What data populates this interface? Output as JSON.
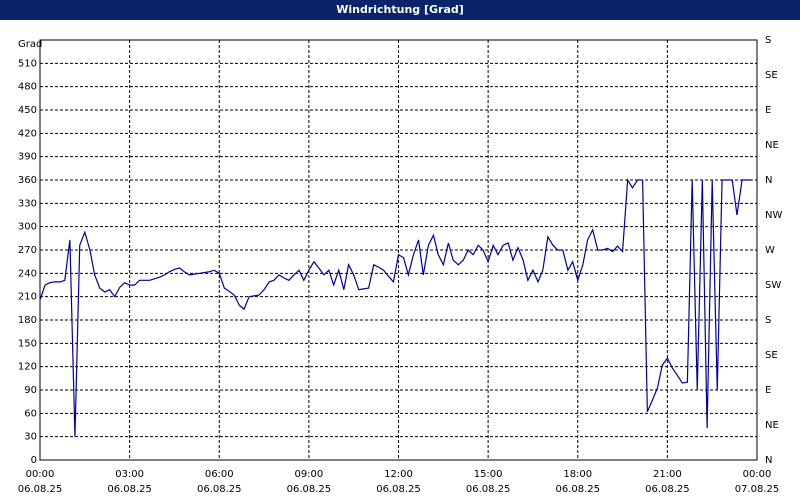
{
  "chart_data": {
    "type": "line",
    "title": "Windrichtung [Grad]",
    "y_label": "Grad",
    "x": [
      0,
      0.17,
      0.33,
      0.5,
      0.67,
      0.83,
      1,
      1.17,
      1.33,
      1.5,
      1.67,
      1.83,
      2,
      2.17,
      2.33,
      2.5,
      2.67,
      2.83,
      3,
      3.17,
      3.33,
      3.5,
      3.67,
      3.83,
      4,
      4.17,
      4.33,
      4.5,
      4.67,
      4.83,
      5,
      5.17,
      5.33,
      5.5,
      5.67,
      5.83,
      6,
      6.17,
      6.33,
      6.5,
      6.67,
      6.83,
      7,
      7.17,
      7.33,
      7.5,
      7.67,
      7.83,
      8,
      8.17,
      8.33,
      8.5,
      8.67,
      8.83,
      9,
      9.17,
      9.33,
      9.5,
      9.67,
      9.83,
      10,
      10.17,
      10.33,
      10.5,
      10.67,
      10.83,
      11,
      11.17,
      11.33,
      11.5,
      11.67,
      11.83,
      12,
      12.17,
      12.33,
      12.5,
      12.67,
      12.83,
      13,
      13.17,
      13.33,
      13.5,
      13.67,
      13.83,
      14,
      14.17,
      14.33,
      14.5,
      14.67,
      14.83,
      15,
      15.17,
      15.33,
      15.5,
      15.67,
      15.83,
      16,
      16.17,
      16.33,
      16.5,
      16.67,
      16.83,
      17,
      17.17,
      17.33,
      17.5,
      17.67,
      17.83,
      18,
      18.17,
      18.33,
      18.5,
      18.67,
      18.83,
      19,
      19.17,
      19.33,
      19.5,
      19.67,
      19.83,
      20,
      20.17,
      20.33,
      20.5,
      20.67,
      20.83,
      21,
      21.17,
      21.33,
      21.5,
      21.67,
      21.83,
      22,
      22.17,
      22.33,
      22.5,
      22.67,
      22.83,
      23,
      23.17,
      23.33,
      23.5,
      23.67,
      23.83
    ],
    "series": [
      {
        "name": "Windrichtung",
        "color": "#0000a0",
        "values": [
          206,
          225,
          228,
          229,
          229,
          231,
          283,
          30,
          276,
          293,
          270,
          238,
          221,
          216,
          219,
          210,
          222,
          228,
          225,
          225,
          231,
          231,
          231,
          233,
          235,
          238,
          242,
          245,
          247,
          242,
          238,
          239,
          240,
          241,
          242,
          244,
          240,
          221,
          217,
          212,
          199,
          194,
          210,
          211,
          212,
          219,
          229,
          231,
          238,
          234,
          231,
          238,
          244,
          231,
          244,
          255,
          247,
          238,
          244,
          225,
          244,
          219,
          251,
          238,
          219,
          220,
          221,
          251,
          248,
          244,
          236,
          229,
          264,
          260,
          238,
          264,
          283,
          238,
          276,
          289,
          264,
          251,
          279,
          257,
          251,
          257,
          270,
          264,
          276,
          270,
          255,
          276,
          264,
          276,
          279,
          257,
          273,
          257,
          231,
          244,
          229,
          244,
          287,
          276,
          270,
          270,
          244,
          255,
          231,
          251,
          283,
          296,
          270,
          270,
          272,
          268,
          275,
          268,
          360,
          350,
          360,
          360,
          62,
          77,
          93,
          122,
          131,
          118,
          109,
          99,
          100,
          360,
          90,
          360,
          41,
          360,
          90,
          360,
          360,
          360,
          315,
          360,
          360,
          360
        ]
      }
    ],
    "xlim": [
      0,
      24
    ],
    "xticks": [
      {
        "value": 0,
        "label": "00:00"
      },
      {
        "value": 3,
        "label": "03:00"
      },
      {
        "value": 6,
        "label": "06:00"
      },
      {
        "value": 9,
        "label": "09:00"
      },
      {
        "value": 12,
        "label": "12:00"
      },
      {
        "value": 15,
        "label": "15:00"
      },
      {
        "value": 18,
        "label": "18:00"
      },
      {
        "value": 21,
        "label": "21:00"
      },
      {
        "value": 24,
        "label": "00:00"
      }
    ],
    "xtick_dates": [
      "06.08.25",
      "06.08.25",
      "06.08.25",
      "06.08.25",
      "06.08.25",
      "06.08.25",
      "06.08.25",
      "06.08.25",
      "07.08.25"
    ],
    "ylim": [
      0,
      540
    ],
    "yticks": [
      0,
      30,
      60,
      90,
      120,
      150,
      180,
      210,
      240,
      270,
      300,
      330,
      360,
      390,
      420,
      450,
      480,
      510
    ],
    "y2lim": [
      0,
      540
    ],
    "y2ticks": [
      {
        "value": 0,
        "label": "N"
      },
      {
        "value": 45,
        "label": "NE"
      },
      {
        "value": 90,
        "label": "E"
      },
      {
        "value": 135,
        "label": "SE"
      },
      {
        "value": 180,
        "label": "S"
      },
      {
        "value": 225,
        "label": "SW"
      },
      {
        "value": 270,
        "label": "W"
      },
      {
        "value": 315,
        "label": "NW"
      },
      {
        "value": 360,
        "label": "N"
      },
      {
        "value": 405,
        "label": "NE"
      },
      {
        "value": 450,
        "label": "E"
      },
      {
        "value": 495,
        "label": "SE"
      },
      {
        "value": 540,
        "label": "S"
      }
    ],
    "grid": true
  }
}
